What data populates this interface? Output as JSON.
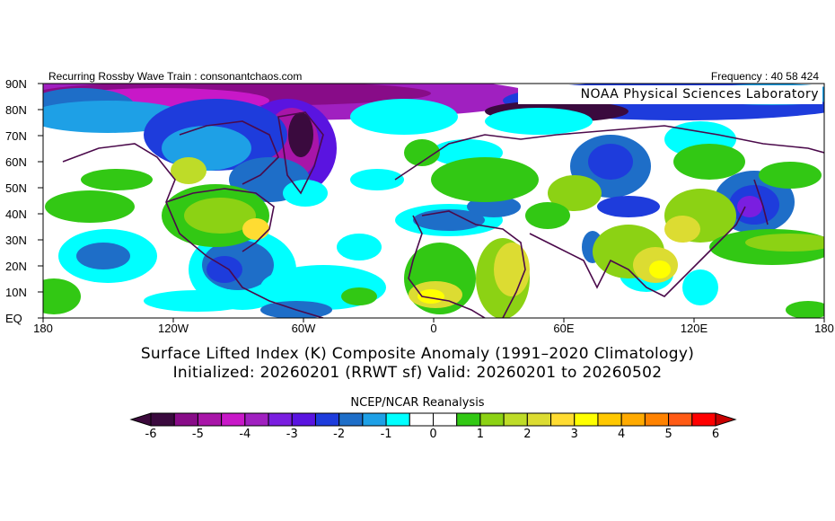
{
  "header": {
    "left_text": "Recurring Rossby Wave Train : consonantchaos.com",
    "right_text": "Frequency : 40 58 424",
    "map_credit": "NOAA Physical Sciences Laboratory"
  },
  "map": {
    "lat_labels": [
      "90N",
      "80N",
      "70N",
      "60N",
      "50N",
      "40N",
      "30N",
      "20N",
      "10N",
      "EQ"
    ],
    "lon_labels": [
      "180",
      "120W",
      "60W",
      "0",
      "60E",
      "120E",
      "180"
    ],
    "coastline_color": "#4b0a4b"
  },
  "titles": {
    "line1": "Surface Lifted Index (K) Composite Anomaly (1991–2020 Climatology)",
    "line2": "Initialized: 20260201 (RRWT sf) Valid: 20260201 to 20260502"
  },
  "colorbar": {
    "label": "NCEP/NCAR Reanalysis",
    "tick_labels": [
      "-6",
      "-5",
      "-4",
      "-3",
      "-2",
      "-1",
      "0",
      "1",
      "2",
      "3",
      "4",
      "5",
      "6"
    ],
    "range": [
      -6,
      6
    ],
    "step": 0.5,
    "under_color": "#3c0a3c",
    "over_color": "#c80000",
    "colors": [
      "#3a0a3e",
      "#880c88",
      "#a815a8",
      "#c818c8",
      "#a020c0",
      "#7a1ee0",
      "#5a14e0",
      "#1e3cdc",
      "#1e6ec8",
      "#1ea0e6",
      "#00ffff",
      "#ffffff",
      "#ffffff",
      "#32c814",
      "#8cd214",
      "#bedc28",
      "#dcdc32",
      "#ffdc32",
      "#ffff00",
      "#ffc800",
      "#ffaa00",
      "#ff8200",
      "#ff5a14",
      "#ff0000"
    ]
  }
}
